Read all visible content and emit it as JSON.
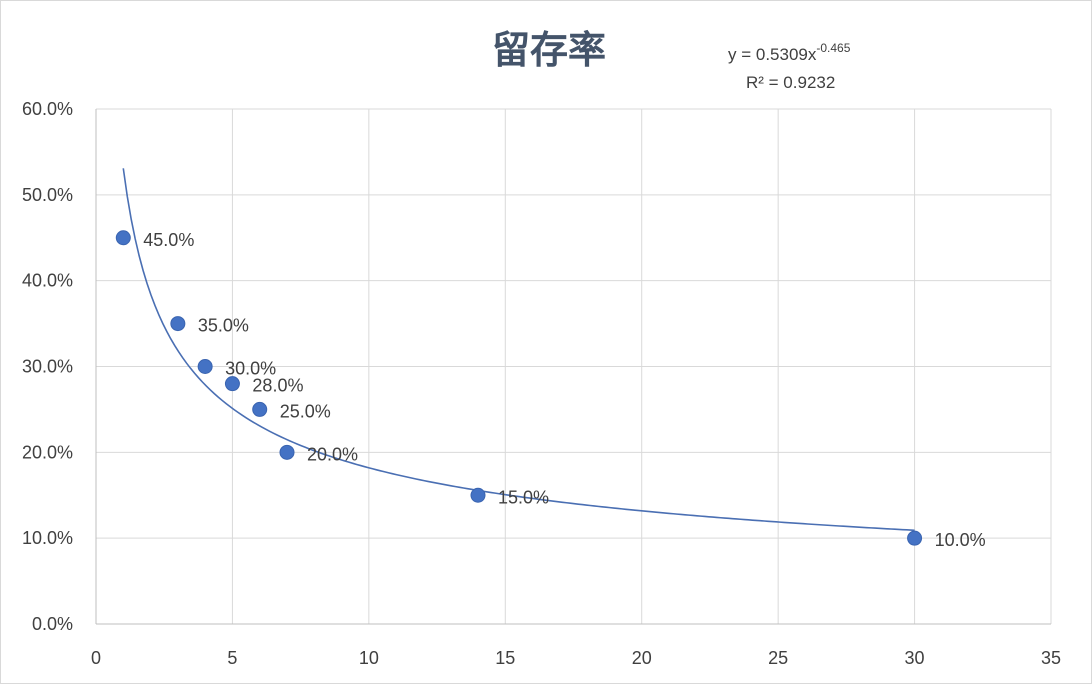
{
  "chart_data": {
    "type": "scatter",
    "title": "留存率",
    "xlabel": "",
    "ylabel": "",
    "xlim": [
      0,
      35
    ],
    "ylim": [
      0,
      0.6
    ],
    "x_ticks": [
      0,
      5,
      10,
      15,
      20,
      25,
      30,
      35
    ],
    "x_tick_labels": [
      "0",
      "5",
      "10",
      "15",
      "20",
      "25",
      "30",
      "35"
    ],
    "y_ticks": [
      0,
      0.1,
      0.2,
      0.3,
      0.4,
      0.5,
      0.6
    ],
    "y_tick_labels": [
      "0.0%",
      "10.0%",
      "20.0%",
      "30.0%",
      "40.0%",
      "50.0%",
      "60.0%"
    ],
    "grid": true,
    "legend": "none",
    "points": [
      {
        "x": 1,
        "y": 0.45,
        "label": "45.0%"
      },
      {
        "x": 3,
        "y": 0.35,
        "label": "35.0%"
      },
      {
        "x": 4,
        "y": 0.3,
        "label": "30.0%"
      },
      {
        "x": 5,
        "y": 0.28,
        "label": "28.0%"
      },
      {
        "x": 6,
        "y": 0.25,
        "label": "25.0%"
      },
      {
        "x": 7,
        "y": 0.2,
        "label": "20.0%"
      },
      {
        "x": 14,
        "y": 0.15,
        "label": "15.0%"
      },
      {
        "x": 30,
        "y": 0.1,
        "label": "10.0%"
      }
    ],
    "trendline": {
      "type": "power",
      "coefficient": 0.5309,
      "exponent": -0.465,
      "x_range": [
        1,
        30
      ],
      "equation_prefix": "y = 0.5309x",
      "equation_exponent": "-0.465",
      "r_squared_text": "R² = 0.9232"
    },
    "colors": {
      "marker": "#4472c4",
      "trendline": "#4a6fb3",
      "grid": "#d9d9d9",
      "axis": "#bfbfbf",
      "title": "#44546a",
      "text": "#404040"
    }
  }
}
